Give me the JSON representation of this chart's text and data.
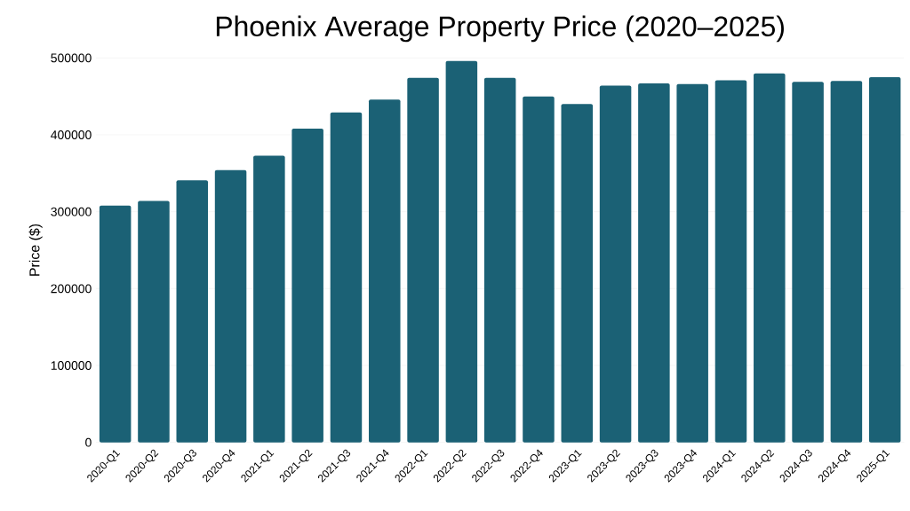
{
  "chart_data": {
    "type": "bar",
    "title": "Phoenix Average Property Price (2020–2025)",
    "ylabel": "Price ($)",
    "categories": [
      "2020-Q1",
      "2020-Q2",
      "2020-Q3",
      "2020-Q4",
      "2021-Q1",
      "2021-Q2",
      "2021-Q3",
      "2021-Q4",
      "2022-Q1",
      "2022-Q2",
      "2022-Q3",
      "2022-Q4",
      "2023-Q1",
      "2023-Q2",
      "2023-Q3",
      "2023-Q4",
      "2024-Q1",
      "2024-Q2",
      "2024-Q3",
      "2024-Q4",
      "2025-Q1"
    ],
    "values": [
      308000,
      314000,
      341000,
      354000,
      373000,
      408000,
      429000,
      446000,
      474000,
      496000,
      474000,
      450000,
      440000,
      464000,
      467000,
      466000,
      471000,
      480000,
      469000,
      470000,
      475000
    ],
    "color": "#1b6175",
    "ylim": [
      0,
      500000
    ],
    "yticks": [
      0,
      100000,
      200000,
      300000,
      400000,
      500000
    ],
    "grid": "y"
  }
}
